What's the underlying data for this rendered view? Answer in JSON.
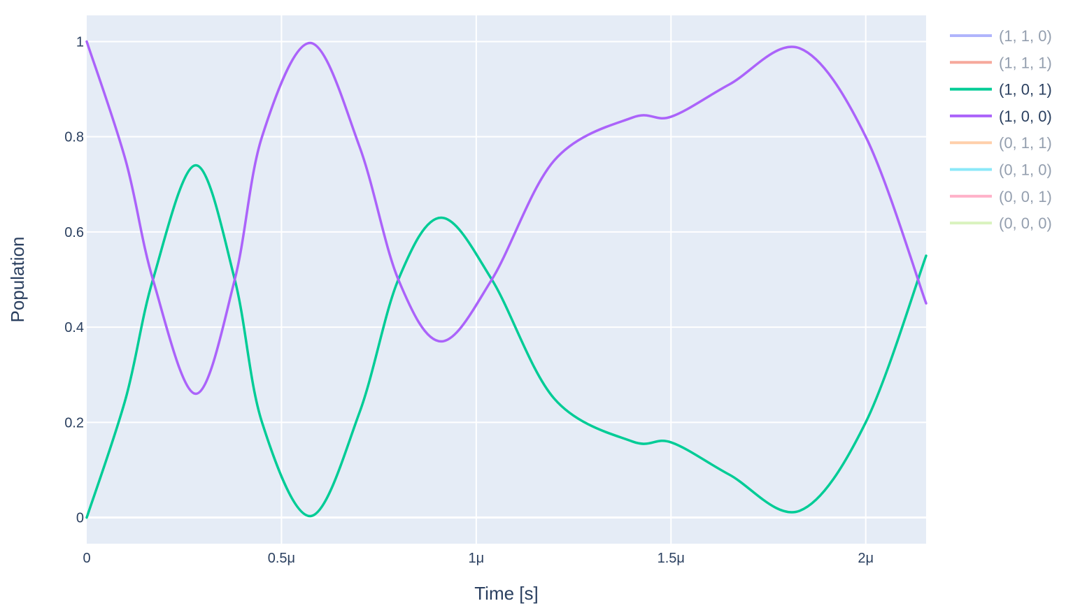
{
  "chart_data": {
    "type": "line",
    "title": "",
    "xlabel": "Time [s]",
    "ylabel": "Population",
    "xlim": [
      0,
      2.155e-06
    ],
    "ylim": [
      -0.055,
      1.055
    ],
    "x_ticks": [
      {
        "value": 0,
        "label": "0"
      },
      {
        "value": 5e-07,
        "label": "0.5μ"
      },
      {
        "value": 1e-06,
        "label": "1μ"
      },
      {
        "value": 1.5e-06,
        "label": "1.5μ"
      },
      {
        "value": 2e-06,
        "label": "2μ"
      }
    ],
    "y_ticks": [
      {
        "value": 0,
        "label": "0"
      },
      {
        "value": 0.2,
        "label": "0.2"
      },
      {
        "value": 0.4,
        "label": "0.4"
      },
      {
        "value": 0.6,
        "label": "0.6"
      },
      {
        "value": 0.8,
        "label": "0.8"
      },
      {
        "value": 1,
        "label": "1"
      }
    ],
    "grid": true,
    "legend_position": "right",
    "plot_bgcolor": "#e5ecf6",
    "series": [
      {
        "name": "(1, 1, 0)",
        "color": "#636efa",
        "visible": false,
        "x": [],
        "y": []
      },
      {
        "name": "(1, 1, 1)",
        "color": "#ef553b",
        "visible": false,
        "x": [],
        "y": []
      },
      {
        "name": "(1, 0, 1)",
        "color": "#00cc96",
        "visible": true,
        "x": [
          0,
          1e-07,
          1.7e-07,
          2.8e-07,
          3.8e-07,
          4.5e-07,
          5.75e-07,
          7e-07,
          8e-07,
          9.1e-07,
          1.04e-06,
          1.2e-06,
          1.4e-06,
          1.5e-06,
          1.65e-06,
          1.83e-06,
          2e-06,
          2.155e-06
        ],
        "y": [
          0,
          0.25,
          0.5,
          0.74,
          0.5,
          0.2,
          0.003,
          0.22,
          0.5,
          0.63,
          0.5,
          0.25,
          0.16,
          0.158,
          0.09,
          0.014,
          0.2,
          0.55
        ]
      },
      {
        "name": "(1, 0, 0)",
        "color": "#ab63fa",
        "visible": true,
        "x": [
          0,
          1e-07,
          1.7e-07,
          2.8e-07,
          3.8e-07,
          4.5e-07,
          5.75e-07,
          7e-07,
          8e-07,
          9.1e-07,
          1.04e-06,
          1.2e-06,
          1.4e-06,
          1.5e-06,
          1.65e-06,
          1.83e-06,
          2e-06,
          2.155e-06
        ],
        "y": [
          1,
          0.75,
          0.5,
          0.26,
          0.5,
          0.8,
          0.997,
          0.78,
          0.5,
          0.37,
          0.5,
          0.75,
          0.84,
          0.842,
          0.91,
          0.986,
          0.8,
          0.45
        ]
      },
      {
        "name": "(0, 1, 1)",
        "color": "#ffa15a",
        "visible": false,
        "x": [],
        "y": []
      },
      {
        "name": "(0, 1, 0)",
        "color": "#19d3f3",
        "visible": false,
        "x": [],
        "y": []
      },
      {
        "name": "(0, 0, 1)",
        "color": "#ff6692",
        "visible": false,
        "x": [],
        "y": []
      },
      {
        "name": "(0, 0, 0)",
        "color": "#b6e880",
        "visible": false,
        "x": [],
        "y": []
      }
    ]
  }
}
